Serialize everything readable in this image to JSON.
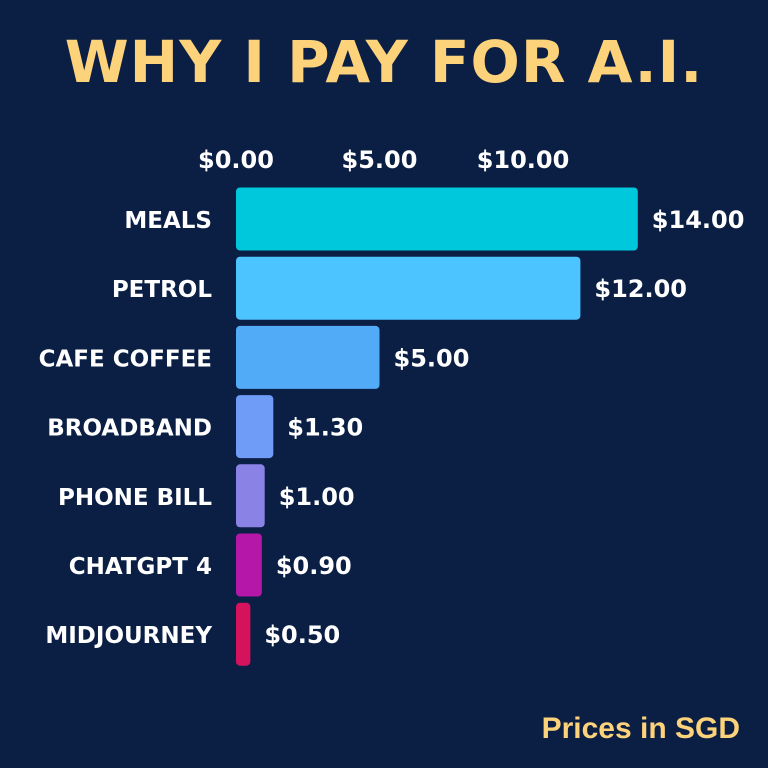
{
  "title": "WHY I PAY FOR A.I.",
  "footnote": "Prices in SGD",
  "chart_data": {
    "type": "bar",
    "orientation": "horizontal",
    "title": "WHY I PAY FOR A.I.",
    "xlabel": "",
    "ylabel": "",
    "xlim": [
      0,
      14
    ],
    "tick_values": [
      0,
      5,
      10
    ],
    "tick_labels": [
      "$0.00",
      "$5.00",
      "$10.00"
    ],
    "axis_position": "top",
    "grid": false,
    "categories": [
      "MEALS",
      "PETROL",
      "CAFE COFFEE",
      "BROADBAND",
      "PHONE BILL",
      "CHATGPT 4",
      "MIDJOURNEY"
    ],
    "values": [
      14.0,
      12.0,
      5.0,
      1.3,
      1.0,
      0.9,
      0.5
    ],
    "value_labels": [
      "$14.00",
      "$12.00",
      "$5.00",
      "$1.30",
      "$1.00",
      "$0.90",
      "$0.50"
    ],
    "colors": [
      "#00c8dc",
      "#4cc4ff",
      "#52abf7",
      "#6e9cf7",
      "#8a82e4",
      "#b517a8",
      "#d5135c"
    ]
  }
}
